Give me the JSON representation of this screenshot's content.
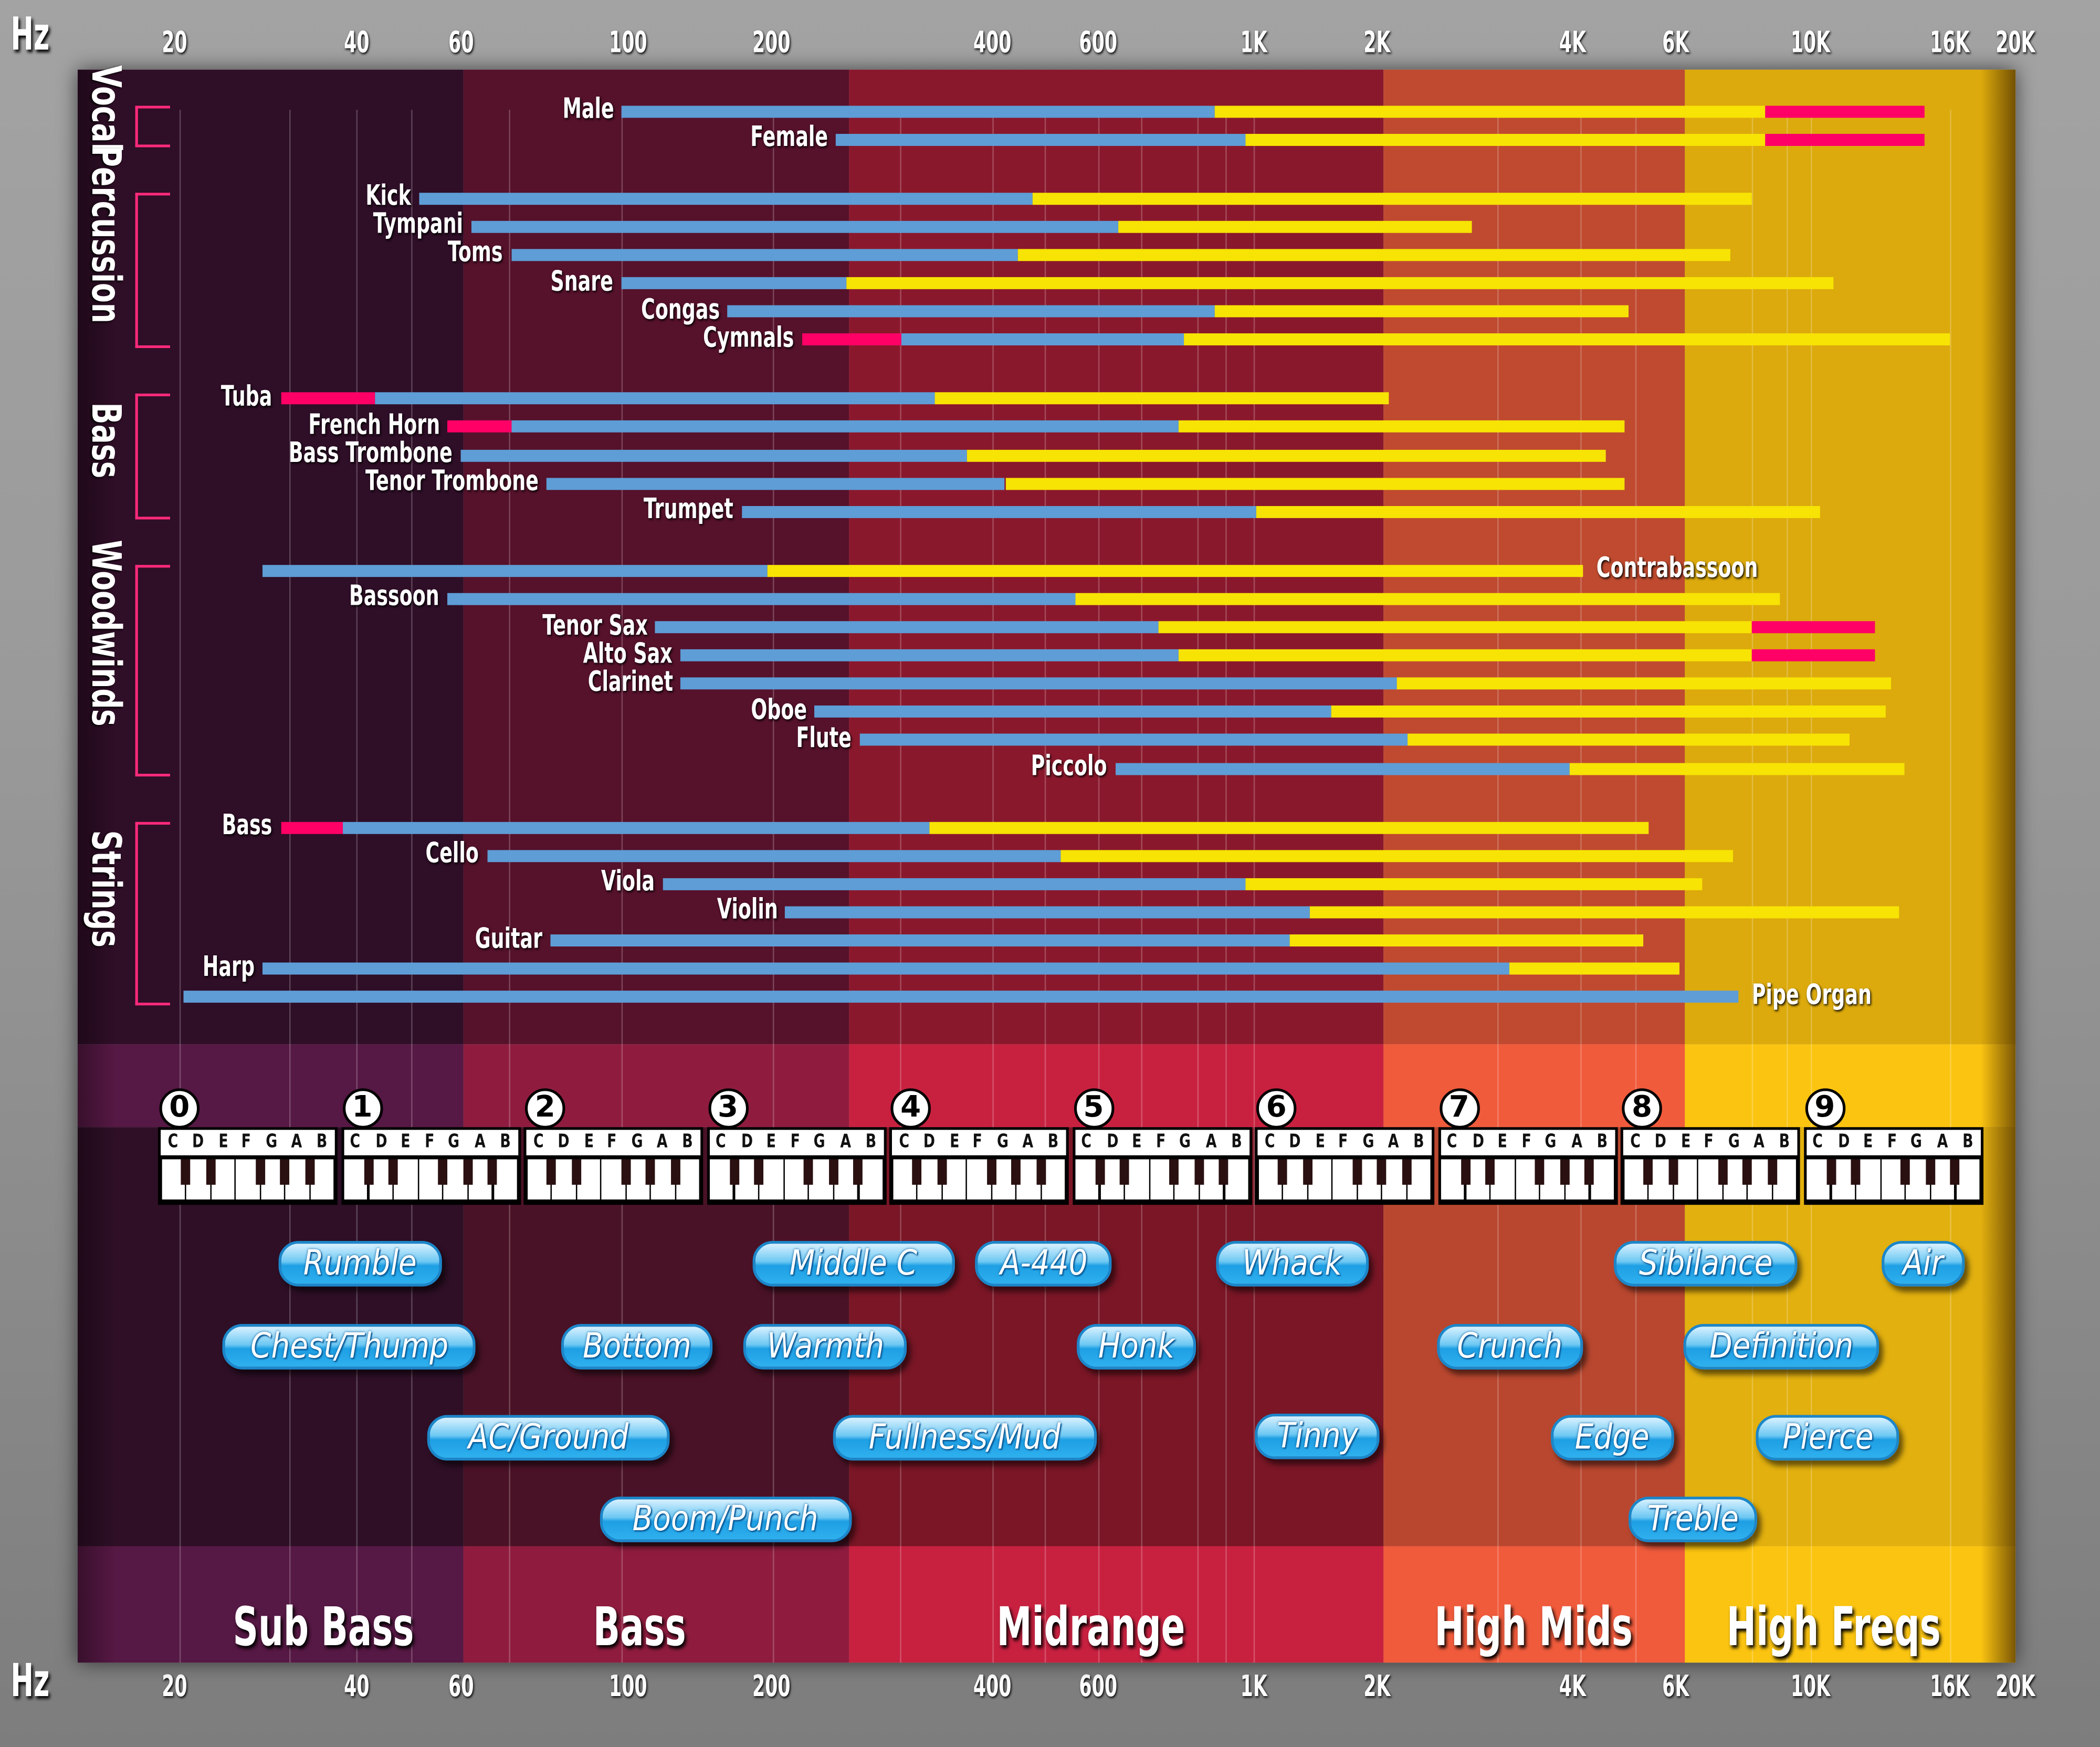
{
  "colors": {
    "red": "#ff0066",
    "blue": "#5e9dd6",
    "yellow": "#f7e304",
    "bracket": "#ff2a7a",
    "pill": "#2fb0ee"
  },
  "axis": {
    "unit_label": "Hz",
    "ticks": [
      "20",
      "40",
      "60",
      "100",
      "200",
      "400",
      "600",
      "1K",
      "2K",
      "4K",
      "6K",
      "10K",
      "16K",
      "20K"
    ]
  },
  "chart_data": {
    "type": "range-bar",
    "x_scale": "log",
    "xlabel": "Hz",
    "xlim": [
      20,
      20000
    ],
    "groups": [
      {
        "name": "Vocal",
        "instruments": [
          {
            "name": "Male",
            "label_side": "left",
            "segments": [
              {
                "color": "blue",
                "from": 98,
                "to": 880
              },
              {
                "color": "yellow",
                "from": 880,
                "to": 8400
              },
              {
                "color": "red",
                "from": 8400,
                "to": 14700
              }
            ]
          },
          {
            "name": "Female",
            "label_side": "left",
            "segments": [
              {
                "color": "blue",
                "from": 245,
                "to": 975
              },
              {
                "color": "yellow",
                "from": 975,
                "to": 8400
              },
              {
                "color": "red",
                "from": 8400,
                "to": 14700
              }
            ]
          }
        ]
      },
      {
        "name": "Percussion",
        "instruments": [
          {
            "name": "Kick",
            "label_side": "left",
            "segments": [
              {
                "color": "blue",
                "from": 51,
                "to": 467
              },
              {
                "color": "yellow",
                "from": 467,
                "to": 8000
              }
            ]
          },
          {
            "name": "Tympani",
            "label_side": "left",
            "segments": [
              {
                "color": "blue",
                "from": 62,
                "to": 640
              },
              {
                "color": "yellow",
                "from": 640,
                "to": 2800
              }
            ]
          },
          {
            "name": "Toms",
            "label_side": "left",
            "segments": [
              {
                "color": "blue",
                "from": 70,
                "to": 440
              },
              {
                "color": "yellow",
                "from": 440,
                "to": 7400
              }
            ]
          },
          {
            "name": "Snare",
            "label_side": "left",
            "segments": [
              {
                "color": "blue",
                "from": 98,
                "to": 253
              },
              {
                "color": "yellow",
                "from": 253,
                "to": 10800
              }
            ]
          },
          {
            "name": "Congas",
            "label_side": "left",
            "segments": [
              {
                "color": "blue",
                "from": 162,
                "to": 880
              },
              {
                "color": "yellow",
                "from": 880,
                "to": 5000
              }
            ]
          },
          {
            "name": "Cymnals",
            "label_side": "left",
            "segments": [
              {
                "color": "red",
                "from": 220,
                "to": 300
              },
              {
                "color": "blue",
                "from": 300,
                "to": 795
              },
              {
                "color": "yellow",
                "from": 795,
                "to": 16000
              }
            ]
          }
        ]
      },
      {
        "name": "Bass",
        "instruments": [
          {
            "name": "Tuba",
            "label_side": "left",
            "segments": [
              {
                "color": "red",
                "from": 30,
                "to": 43
              },
              {
                "color": "blue",
                "from": 43,
                "to": 334
              },
              {
                "color": "yellow",
                "from": 334,
                "to": 2090
              }
            ]
          },
          {
            "name": "French Horn",
            "label_side": "left",
            "segments": [
              {
                "color": "red",
                "from": 57,
                "to": 70
              },
              {
                "color": "blue",
                "from": 70,
                "to": 780
              },
              {
                "color": "yellow",
                "from": 780,
                "to": 4900
              }
            ]
          },
          {
            "name": "Bass Trombone",
            "label_side": "left",
            "segments": [
              {
                "color": "blue",
                "from": 60,
                "to": 370
              },
              {
                "color": "yellow",
                "from": 370,
                "to": 4560
              }
            ]
          },
          {
            "name": "Tenor Trombone",
            "label_side": "left",
            "segments": [
              {
                "color": "blue",
                "from": 78,
                "to": 420
              },
              {
                "color": "yellow",
                "from": 420,
                "to": 4900
              }
            ]
          },
          {
            "name": "Trumpet",
            "label_side": "left",
            "segments": [
              {
                "color": "blue",
                "from": 173,
                "to": 1015
              },
              {
                "color": "yellow",
                "from": 1015,
                "to": 10300
              }
            ]
          }
        ]
      },
      {
        "name": "Woodwinds",
        "instruments": [
          {
            "name": "Contrabassoon",
            "label_side": "right",
            "segments": [
              {
                "color": "blue",
                "from": 28,
                "to": 196
              },
              {
                "color": "yellow",
                "from": 196,
                "to": 4170
              }
            ]
          },
          {
            "name": "Bassoon",
            "label_side": "left",
            "segments": [
              {
                "color": "blue",
                "from": 57,
                "to": 550
              },
              {
                "color": "yellow",
                "from": 550,
                "to": 8900
              }
            ]
          },
          {
            "name": "Tenor Sax",
            "label_side": "left",
            "segments": [
              {
                "color": "blue",
                "from": 114,
                "to": 730
              },
              {
                "color": "yellow",
                "from": 730,
                "to": 8000
              },
              {
                "color": "red",
                "from": 8000,
                "to": 12400
              }
            ]
          },
          {
            "name": "Alto Sax",
            "label_side": "left",
            "segments": [
              {
                "color": "blue",
                "from": 129,
                "to": 780
              },
              {
                "color": "yellow",
                "from": 780,
                "to": 8000
              },
              {
                "color": "red",
                "from": 8000,
                "to": 12400
              }
            ]
          },
          {
            "name": "Clarinet",
            "label_side": "left",
            "segments": [
              {
                "color": "blue",
                "from": 129,
                "to": 2150
              },
              {
                "color": "yellow",
                "from": 2150,
                "to": 13100
              }
            ]
          },
          {
            "name": "Oboe",
            "label_side": "left",
            "segments": [
              {
                "color": "blue",
                "from": 229,
                "to": 1550
              },
              {
                "color": "yellow",
                "from": 1550,
                "to": 12900
              }
            ]
          },
          {
            "name": "Flute",
            "label_side": "left",
            "segments": [
              {
                "color": "blue",
                "from": 264,
                "to": 2230
              },
              {
                "color": "yellow",
                "from": 2230,
                "to": 11400
              }
            ]
          },
          {
            "name": "Piccolo",
            "label_side": "left",
            "segments": [
              {
                "color": "blue",
                "from": 635,
                "to": 3960
              },
              {
                "color": "yellow",
                "from": 3960,
                "to": 13700
              }
            ]
          }
        ]
      },
      {
        "name": "Strings",
        "instruments": [
          {
            "name": "Bass",
            "label_side": "left",
            "segments": [
              {
                "color": "red",
                "from": 30,
                "to": 38
              },
              {
                "color": "blue",
                "from": 38,
                "to": 328
              },
              {
                "color": "yellow",
                "from": 328,
                "to": 5400
              }
            ]
          },
          {
            "name": "Cello",
            "label_side": "left",
            "segments": [
              {
                "color": "blue",
                "from": 65,
                "to": 520
              },
              {
                "color": "yellow",
                "from": 520,
                "to": 7450
              }
            ]
          },
          {
            "name": "Viola",
            "label_side": "left",
            "segments": [
              {
                "color": "blue",
                "from": 118,
                "to": 975
              },
              {
                "color": "yellow",
                "from": 975,
                "to": 6640
              }
            ]
          },
          {
            "name": "Violin",
            "label_side": "left",
            "segments": [
              {
                "color": "blue",
                "from": 209,
                "to": 1370
              },
              {
                "color": "yellow",
                "from": 1370,
                "to": 13500
              }
            ]
          },
          {
            "name": "Guitar",
            "label_side": "left",
            "segments": [
              {
                "color": "blue",
                "from": 79,
                "to": 1225
              },
              {
                "color": "yellow",
                "from": 1225,
                "to": 5300
              }
            ]
          },
          {
            "name": "Harp",
            "label_side": "left",
            "segments": [
              {
                "color": "blue",
                "from": 28,
                "to": 3200
              },
              {
                "color": "yellow",
                "from": 3200,
                "to": 6100
              }
            ]
          },
          {
            "name": "Pipe Organ",
            "label_side": "right",
            "segments": [
              {
                "color": "blue",
                "from": 20.7,
                "to": 7600
              }
            ]
          }
        ]
      }
    ],
    "bands": [
      {
        "name": "Sub Bass",
        "colors": [
          "#2f0e27",
          "#561844",
          "#2e0f26"
        ]
      },
      {
        "name": "Bass",
        "colors": [
          "#56112b",
          "#8f1c3f",
          "#4a1226"
        ]
      },
      {
        "name": "Midrange",
        "colors": [
          "#8a182c",
          "#c82140",
          "#7a1626"
        ]
      },
      {
        "name": "High Mids",
        "colors": [
          "#bf4a2f",
          "#f05b3c",
          "#b9472f"
        ]
      },
      {
        "name": "High Freqs",
        "colors": [
          "#dcaa0c",
          "#fbc411",
          "#e2b00f"
        ]
      }
    ]
  },
  "piano": {
    "octaves": [
      "0",
      "1",
      "2",
      "3",
      "4",
      "5",
      "6",
      "7",
      "8",
      "9"
    ],
    "notes": [
      "C",
      "D",
      "E",
      "F",
      "G",
      "A",
      "B"
    ]
  },
  "callouts": [
    "Rumble",
    "Middle C",
    "A-440",
    "Whack",
    "Sibilance",
    "Air",
    "Chest/Thump",
    "Bottom",
    "Warmth",
    "Honk",
    "Crunch",
    "Definition",
    "AC/Ground",
    "Fullness/Mud",
    "Tinny",
    "Edge",
    "Pierce",
    "Boom/Punch",
    "Treble"
  ]
}
